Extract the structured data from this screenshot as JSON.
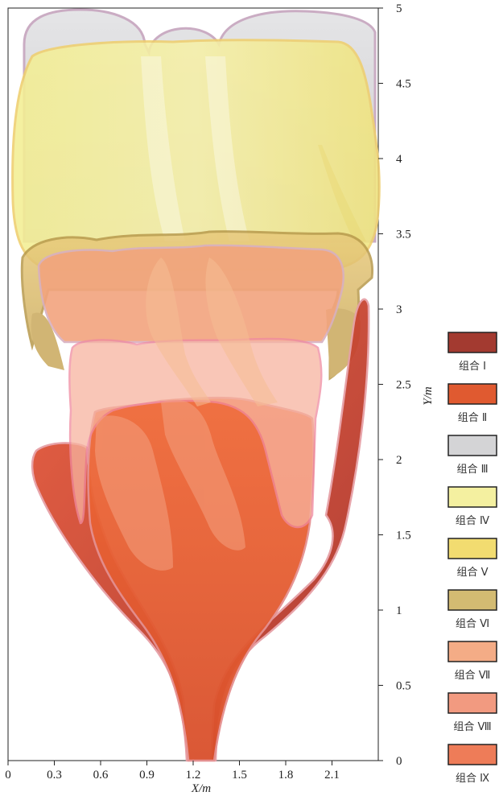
{
  "figure": {
    "x_axis_title": "X/m",
    "y_axis_title": "Y/m"
  },
  "chart_data": {
    "type": "area",
    "xlim": [
      0,
      2.4
    ],
    "ylim": [
      0,
      5
    ],
    "x_ticks": [
      "0",
      "0.3",
      "0.6",
      "0.9",
      "1.2",
      "1.5",
      "1.8",
      "2.1"
    ],
    "y_ticks": [
      "0",
      "0.5",
      "1",
      "1.5",
      "2",
      "2.5",
      "3",
      "3.5",
      "4",
      "4.5",
      "5"
    ],
    "xlabel": "X/m",
    "ylabel": "Y/m",
    "grid": false,
    "legend_position": "right",
    "legend": [
      {
        "label": "组合 Ⅰ",
        "color": "#a33a30"
      },
      {
        "label": "组合 Ⅱ",
        "color": "#e05a30"
      },
      {
        "label": "组合 Ⅲ",
        "color": "#d4d4d6"
      },
      {
        "label": "组合 Ⅳ",
        "color": "#f4f0a0"
      },
      {
        "label": "组合 Ⅴ",
        "color": "#f2dc70"
      },
      {
        "label": "组合 Ⅵ",
        "color": "#d3bb72"
      },
      {
        "label": "组合 Ⅶ",
        "color": "#f4ac86"
      },
      {
        "label": "组合 Ⅷ",
        "color": "#f29a80"
      },
      {
        "label": "组合 Ⅸ",
        "color": "#ee7c58"
      }
    ]
  }
}
